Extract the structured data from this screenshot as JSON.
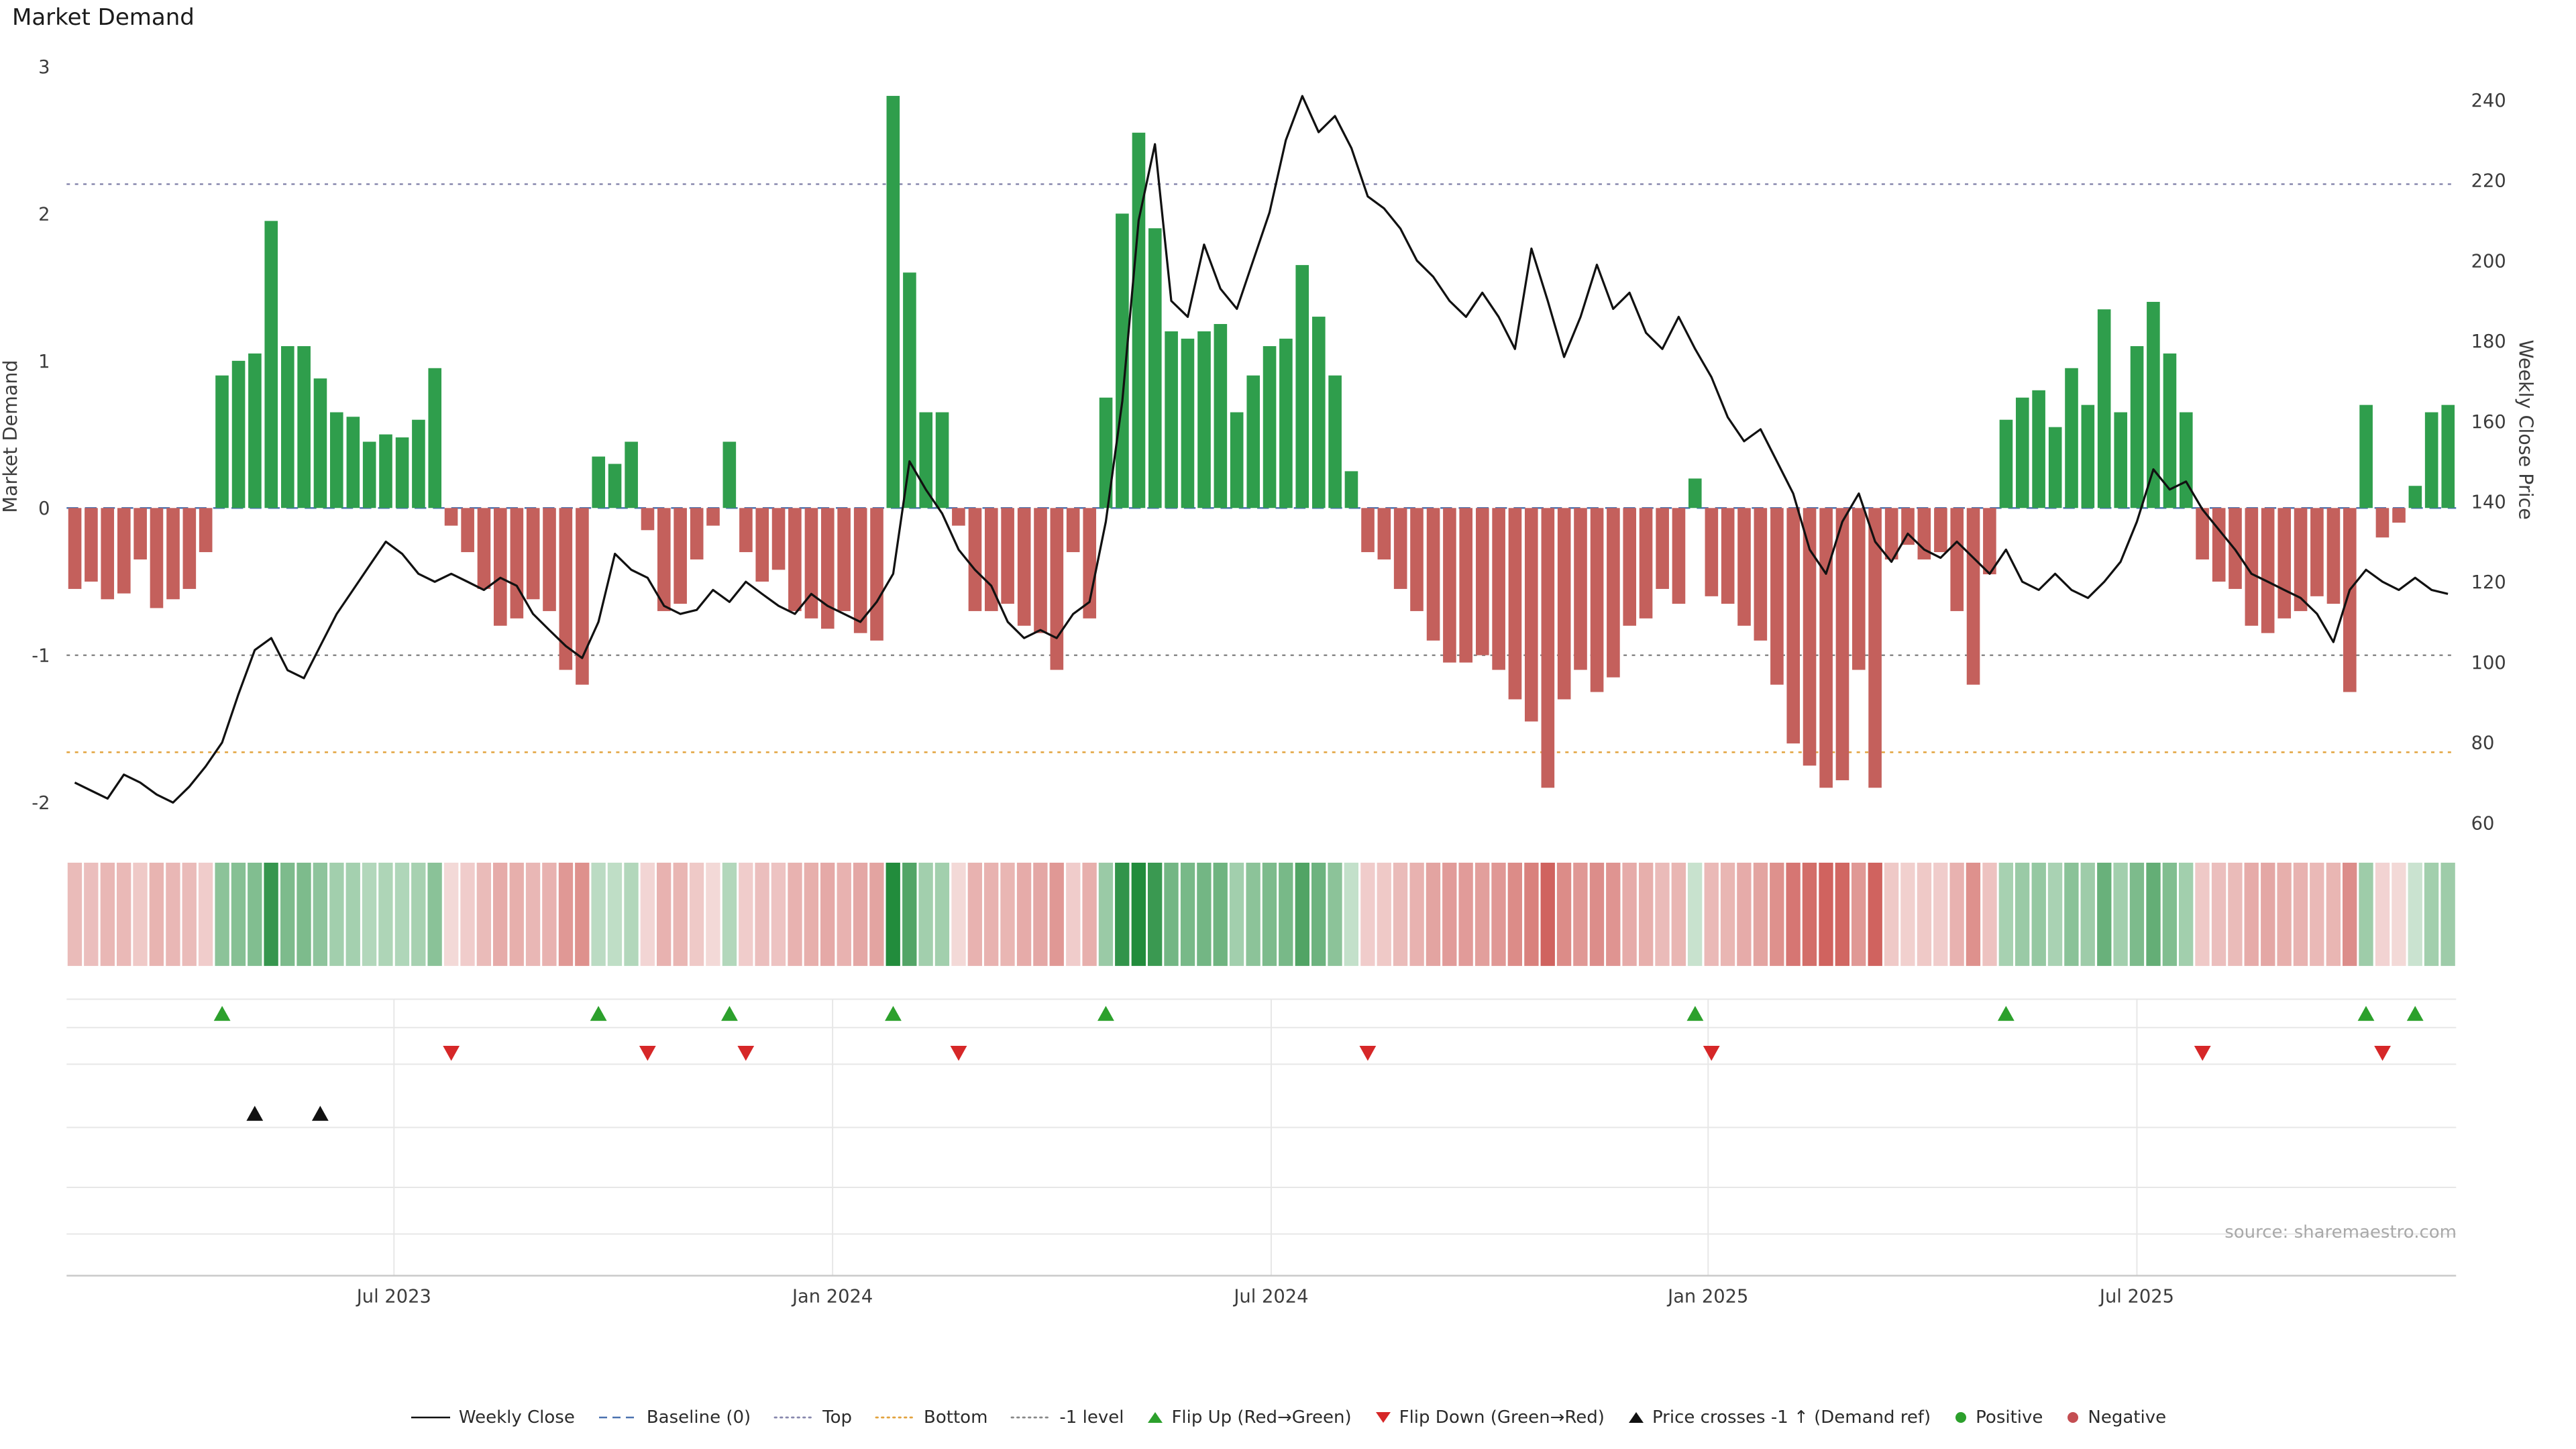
{
  "title": "Market Demand",
  "source": "source: sharemaestro.com",
  "chart_data": {
    "type": "combo-bar-line-heatmap",
    "title": "Market Demand",
    "x_ticks": [
      {
        "label": "Jul 2023",
        "week": 20
      },
      {
        "label": "Jan 2024",
        "week": 46.8
      },
      {
        "label": "Jul 2024",
        "week": 73.6
      },
      {
        "label": "Jan 2025",
        "week": 100.3
      },
      {
        "label": "Jul 2025",
        "week": 126.5
      }
    ],
    "left_axis": {
      "label": "Market Demand",
      "ticks": [
        3,
        2,
        1,
        0,
        -1,
        -2
      ],
      "min": -2.3,
      "max": 3.05
    },
    "right_axis": {
      "label": "Weekly Close Price",
      "ticks": [
        240,
        220,
        200,
        180,
        160,
        140,
        120,
        100,
        80,
        60
      ]
    },
    "reference_lines": {
      "baseline": 0,
      "top": 2.2,
      "bottom": -1.66,
      "minus_one": -1
    },
    "series": {
      "demand": [
        -0.55,
        -0.5,
        -0.62,
        -0.58,
        -0.35,
        -0.68,
        -0.62,
        -0.55,
        -0.3,
        0.9,
        1.0,
        1.05,
        1.95,
        1.1,
        1.1,
        0.88,
        0.65,
        0.62,
        0.45,
        0.5,
        0.48,
        0.6,
        0.95,
        -0.12,
        -0.3,
        -0.55,
        -0.8,
        -0.75,
        -0.62,
        -0.7,
        -1.1,
        -1.2,
        0.35,
        0.3,
        0.45,
        -0.15,
        -0.7,
        -0.65,
        -0.35,
        -0.12,
        0.45,
        -0.3,
        -0.5,
        -0.42,
        -0.7,
        -0.75,
        -0.82,
        -0.7,
        -0.85,
        -0.9,
        2.8,
        1.6,
        0.65,
        0.65,
        -0.12,
        -0.7,
        -0.7,
        -0.65,
        -0.8,
        -0.85,
        -1.1,
        -0.3,
        -0.75,
        0.75,
        2.0,
        2.55,
        1.9,
        1.2,
        1.15,
        1.2,
        1.25,
        0.65,
        0.9,
        1.1,
        1.15,
        1.65,
        1.3,
        0.9,
        0.25,
        -0.3,
        -0.35,
        -0.55,
        -0.7,
        -0.9,
        -1.05,
        -1.05,
        -1.0,
        -1.1,
        -1.3,
        -1.45,
        -1.9,
        -1.3,
        -1.1,
        -1.25,
        -1.15,
        -0.8,
        -0.75,
        -0.55,
        -0.65,
        0.2,
        -0.6,
        -0.65,
        -0.8,
        -0.9,
        -1.2,
        -1.6,
        -1.75,
        -1.9,
        -1.85,
        -1.1,
        -1.9,
        -0.35,
        -0.25,
        -0.35,
        -0.3,
        -0.7,
        -1.2,
        -0.45,
        0.6,
        0.75,
        0.8,
        0.55,
        0.95,
        0.7,
        1.35,
        0.65,
        1.1,
        1.4,
        1.05,
        0.65,
        -0.35,
        -0.5,
        -0.55,
        -0.8,
        -0.85,
        -0.75,
        -0.7,
        -0.6,
        -0.65,
        -1.25,
        0.7,
        -0.2,
        -0.1,
        0.15,
        0.65,
        0.7
      ],
      "weekly_close": [
        70,
        68,
        66,
        72,
        70,
        67,
        65,
        69,
        74,
        80,
        92,
        103,
        106,
        98,
        96,
        104,
        112,
        118,
        124,
        130,
        127,
        122,
        120,
        122,
        120,
        118,
        121,
        119,
        112,
        108,
        104,
        101,
        110,
        127,
        123,
        121,
        114,
        112,
        113,
        118,
        115,
        120,
        117,
        114,
        112,
        117,
        114,
        112,
        110,
        115,
        122,
        150,
        143,
        137,
        128,
        123,
        119,
        110,
        106,
        108,
        106,
        112,
        115,
        135,
        165,
        210,
        229,
        190,
        186,
        204,
        193,
        188,
        200,
        212,
        230,
        241,
        232,
        236,
        228,
        216,
        213,
        208,
        200,
        196,
        190,
        186,
        192,
        186,
        178,
        203,
        190,
        176,
        186,
        199,
        188,
        192,
        182,
        178,
        186,
        178,
        171,
        161,
        155,
        158,
        150,
        142,
        128,
        122,
        135,
        142,
        130,
        125,
        132,
        128,
        126,
        130,
        126,
        122,
        128,
        120,
        118,
        122,
        118,
        116,
        120,
        125,
        135,
        148,
        143,
        145,
        138,
        133,
        128,
        122,
        120,
        118,
        116,
        112,
        105,
        118,
        123,
        120,
        118,
        121,
        118,
        117
      ]
    },
    "markers": {
      "flip_up_weeks": [
        9,
        32,
        40,
        50,
        63,
        99,
        118,
        140,
        143
      ],
      "flip_down_weeks": [
        23,
        35,
        41,
        54,
        79,
        100,
        130,
        141
      ],
      "price_cross_up_weeks": [
        11,
        15
      ]
    },
    "colors": {
      "positive": "#2f9e4c",
      "negative": "#c4605c",
      "price_line": "#111111",
      "baseline": "#4c72b0",
      "top_line": "#8888ad",
      "bottom_line": "#e2a33e",
      "minus_one_line": "#888888",
      "flip_up": "#2ca02c",
      "flip_down": "#d62728",
      "price_cross": "#111111",
      "heat_positive": "34,140,60",
      "heat_negative": "202,80,75"
    }
  },
  "legend": {
    "items": [
      {
        "id": "weekly-close",
        "label": "Weekly Close",
        "type": "line",
        "color": "#111111"
      },
      {
        "id": "baseline",
        "label": "Baseline (0)",
        "type": "dashed",
        "color": "#4c72b0"
      },
      {
        "id": "top",
        "label": "Top",
        "type": "dotted",
        "color": "#8888ad"
      },
      {
        "id": "bottom",
        "label": "Bottom",
        "type": "dotted",
        "color": "#e2a33e"
      },
      {
        "id": "minus-1-level",
        "label": "-1 level",
        "type": "dotted",
        "color": "#888888"
      },
      {
        "id": "flip-up",
        "label": "Flip Up (Red→Green)",
        "type": "triangle-up",
        "color": "#2ca02c"
      },
      {
        "id": "flip-down",
        "label": "Flip Down (Green→Red)",
        "type": "triangle-down",
        "color": "#d62728"
      },
      {
        "id": "price-cross",
        "label": "Price crosses -1 ↑ (Demand ref)",
        "type": "triangle-up",
        "color": "#111111"
      },
      {
        "id": "positive",
        "label": "Positive",
        "type": "dot",
        "color": "#2ca02c"
      },
      {
        "id": "negative",
        "label": "Negative",
        "type": "dot",
        "color": "#c44e52"
      }
    ]
  }
}
